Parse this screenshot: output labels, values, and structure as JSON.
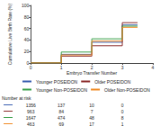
{
  "chart_data": {
    "type": "line",
    "line_style": "step",
    "x_label": "Embryo Transfer Number",
    "y_label": "Cumulative Live Birth Rate (%)",
    "x": [
      0,
      1,
      2,
      3,
      3.5
    ],
    "series": [
      {
        "name": "Younger POSEIDON",
        "color": "#3a5fb0",
        "values": [
          0,
          15,
          36,
          66,
          66
        ]
      },
      {
        "name": "Older POSEIDON",
        "color": "#8b2a2a",
        "values": [
          0,
          12,
          30,
          70,
          70
        ]
      },
      {
        "name": "Younger Non-POSEIDON",
        "color": "#3aa04a",
        "values": [
          0,
          19,
          42,
          64,
          64
        ]
      },
      {
        "name": "Older Non-POSEIDON",
        "color": "#f08a24",
        "values": [
          0,
          14,
          38,
          62,
          62
        ]
      }
    ],
    "xlim": [
      0,
      4
    ],
    "xticks": [
      0,
      1,
      2,
      3,
      4
    ],
    "ylim": [
      0,
      100
    ],
    "yticks": [
      0,
      20,
      40,
      60,
      80,
      100
    ],
    "grid": false,
    "legend": "bottom",
    "number_at_risk": {
      "label": "Number at risk",
      "x": [
        0,
        1,
        2,
        3
      ],
      "rows": [
        [
          1356,
          137,
          10,
          0
        ],
        [
          963,
          84,
          7,
          0
        ],
        [
          1647,
          474,
          48,
          8
        ],
        [
          463,
          69,
          17,
          1
        ]
      ]
    }
  }
}
